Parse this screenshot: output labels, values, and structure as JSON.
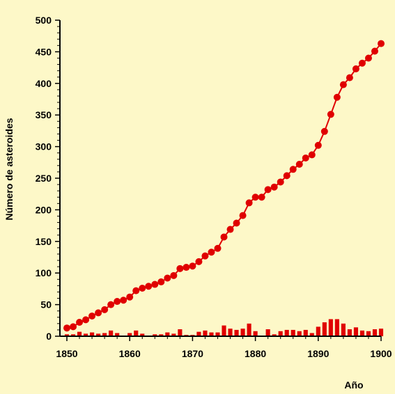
{
  "chart_data": {
    "type": "line+bar",
    "xlabel": "Año",
    "ylabel": "Número de asteroides",
    "xlim": [
      1850,
      1900
    ],
    "ylim": [
      0,
      500
    ],
    "x_ticks": [
      1850,
      1860,
      1870,
      1880,
      1890,
      1900
    ],
    "y_ticks": [
      0,
      50,
      100,
      150,
      200,
      250,
      300,
      350,
      400,
      450,
      500
    ],
    "grid": false,
    "colors": {
      "series": "#e00000",
      "background": "#fdf8c8",
      "axis": "#000000"
    },
    "x": [
      1850,
      1851,
      1852,
      1853,
      1854,
      1855,
      1856,
      1857,
      1858,
      1859,
      1860,
      1861,
      1862,
      1863,
      1864,
      1865,
      1866,
      1867,
      1868,
      1869,
      1870,
      1871,
      1872,
      1873,
      1874,
      1875,
      1876,
      1877,
      1878,
      1879,
      1880,
      1881,
      1882,
      1883,
      1884,
      1885,
      1886,
      1887,
      1888,
      1889,
      1890,
      1891,
      1892,
      1893,
      1894,
      1895,
      1896,
      1897,
      1898,
      1899,
      1900
    ],
    "series": [
      {
        "type": "line",
        "values": [
          13,
          15,
          22,
          26,
          32,
          37,
          42,
          50,
          55,
          57,
          62,
          72,
          76,
          79,
          82,
          86,
          92,
          96,
          107,
          109,
          111,
          118,
          127,
          133,
          139,
          157,
          169,
          179,
          191,
          211,
          220,
          220,
          232,
          236,
          244,
          254,
          264,
          272,
          282,
          287,
          302,
          324,
          351,
          378,
          398,
          409,
          423,
          432,
          440,
          451,
          463
        ]
      },
      {
        "type": "bar",
        "values": [
          3,
          3,
          7,
          4,
          6,
          4,
          5,
          9,
          5,
          1,
          5,
          9,
          4,
          1,
          3,
          3,
          6,
          4,
          11,
          2,
          2,
          7,
          9,
          6,
          6,
          17,
          12,
          10,
          12,
          20,
          8,
          1,
          11,
          3,
          8,
          10,
          10,
          8,
          10,
          5,
          15,
          22,
          27,
          27,
          20,
          11,
          14,
          9,
          8,
          11,
          12
        ]
      }
    ]
  }
}
